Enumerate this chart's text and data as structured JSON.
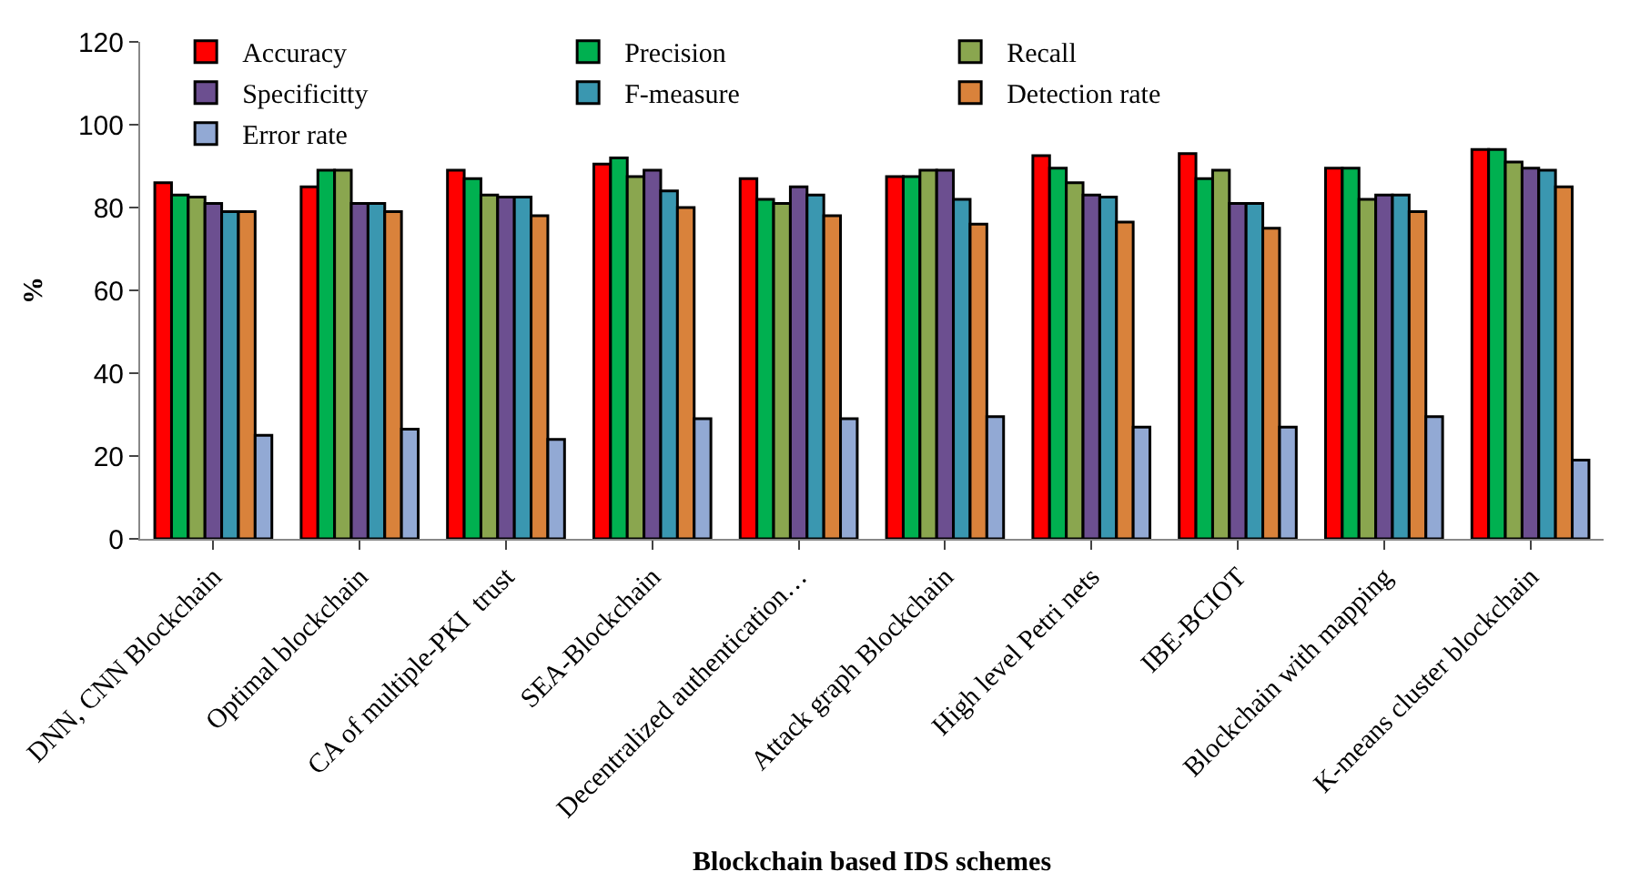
{
  "chart_data": {
    "type": "bar",
    "xlabel": "Blockchain based IDS schemes",
    "ylabel": "%",
    "categories": [
      "DNN, CNN Blockchain",
      "Optimal blockchain",
      "CA of multiple-PKI  trust",
      "SEA-Blockchain",
      "Decentralized authentication…",
      "Attack graph Blockchain",
      "High level Petri nets",
      "IBE-BCIOT",
      "Blockchain with mapping",
      "K-means cluster blockchain"
    ],
    "series": [
      {
        "name": "Accuracy",
        "color": "#ff0000",
        "values": [
          86,
          85,
          89,
          90.5,
          87,
          87.5,
          92.5,
          93,
          89.5,
          94
        ]
      },
      {
        "name": "Precision",
        "color": "#00b050",
        "values": [
          83,
          89,
          87,
          92,
          82,
          87.5,
          89.5,
          87,
          89.5,
          94
        ]
      },
      {
        "name": "Recall",
        "color": "#8aa64f",
        "values": [
          82.5,
          89,
          83,
          87.5,
          81,
          89,
          86,
          89,
          82,
          91
        ]
      },
      {
        "name": "Specificitty",
        "color": "#6c4f90",
        "values": [
          81,
          81,
          82.5,
          89,
          85,
          89,
          83,
          81,
          83,
          89.5
        ]
      },
      {
        "name": "F-measure",
        "color": "#3a97b0",
        "values": [
          79,
          81,
          82.5,
          84,
          83,
          82,
          82.5,
          81,
          83,
          89
        ]
      },
      {
        "name": "Detection rate",
        "color": "#d9823b",
        "values": [
          79,
          79,
          78,
          80,
          78,
          76,
          76.5,
          75,
          79,
          85
        ]
      },
      {
        "name": "Error rate",
        "color": "#92a9d4",
        "values": [
          25,
          26.5,
          24,
          29,
          29,
          29.5,
          27,
          27,
          29.5,
          19
        ]
      }
    ],
    "ylim": [
      0,
      120
    ],
    "yticks": [
      0,
      20,
      40,
      60,
      80,
      100,
      120
    ],
    "legend": "top"
  }
}
